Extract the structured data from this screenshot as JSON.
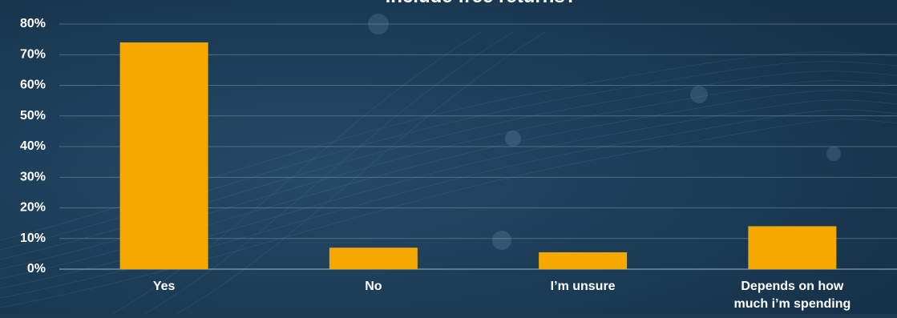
{
  "chart_data": {
    "type": "bar",
    "title": "include free returns?",
    "categories": [
      {
        "lines": [
          "Yes"
        ]
      },
      {
        "lines": [
          "No"
        ]
      },
      {
        "lines": [
          "I’m unsure"
        ]
      },
      {
        "lines": [
          "Depends on how",
          "much i’m spending"
        ]
      }
    ],
    "values": [
      74,
      7,
      5.5,
      14
    ],
    "ylim": [
      0,
      80
    ],
    "yticks": [
      "0%",
      "10%",
      "20%",
      "30%",
      "40%",
      "50%",
      "60%",
      "70%",
      "80%"
    ],
    "grid": true,
    "colors": {
      "bar": "#f5a800",
      "background": "#1c3a52",
      "text": "#ffffff",
      "grid": "#8fa6b8"
    }
  }
}
